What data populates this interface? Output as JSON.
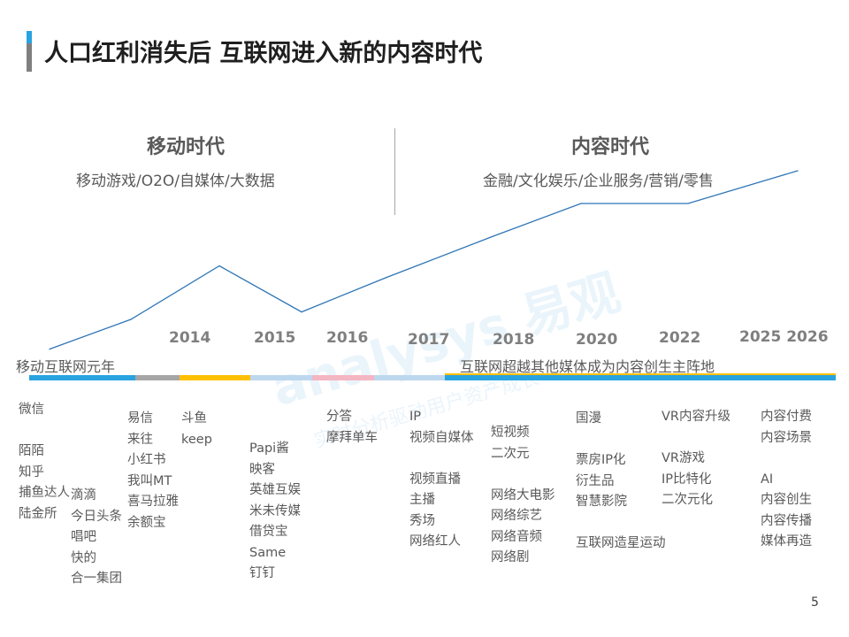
{
  "title": "人口红利消失后 互联网进入新的内容时代",
  "eras": [
    {
      "title": "移动时代",
      "subtitle": "移动游戏/O2O/自媒体/大数据"
    },
    {
      "title": "内容时代",
      "subtitle": "金融/文化娱乐/企业服务/营销/零售"
    }
  ],
  "milestones": [
    "移动互联网元年",
    "互联网超越其他媒体成为内容创生主阵地"
  ],
  "chart_data": {
    "type": "line",
    "title": "",
    "x": [
      "",
      "",
      "2014",
      "2015",
      "2016",
      "",
      "2018",
      "2020",
      "2022",
      "2025 2026"
    ],
    "values": [
      2,
      22,
      58,
      27,
      50,
      62,
      78,
      100,
      100,
      122
    ],
    "year_labels": [
      "2014",
      "2015",
      "2016",
      "2017",
      "2018",
      "2020",
      "2022",
      "2025 2026"
    ],
    "ylim": [
      0,
      130
    ],
    "grid": false,
    "legend": "none",
    "line_color": "#2e75b6"
  },
  "timeline_colors": {
    "blue": "#29a3e0",
    "gold": "#ffc000",
    "light": "#bdd7ee",
    "pink": "#f4b6c2",
    "gray": "#a6a6a6"
  },
  "columns": [
    [
      "微信",
      "",
      "陌陌",
      "知乎",
      "捕鱼达人",
      "陆金所"
    ],
    [
      "滴滴",
      "今日头条",
      "唱吧",
      "快的",
      "合一集团"
    ],
    [
      "易信",
      "来往",
      "小红书",
      "我叫MT",
      "喜马拉雅",
      "余额宝"
    ],
    [
      "斗鱼",
      "keep"
    ],
    [
      "Papi酱",
      "映客",
      "英雄互娱",
      "米未传媒",
      "借贷宝",
      "Same",
      "钉钉"
    ],
    [
      "分答",
      "摩拜单车"
    ],
    [
      "IP",
      "视频自媒体",
      "",
      "视频直播",
      "主播",
      "秀场",
      "网络红人"
    ],
    [
      "短视频",
      "二次元",
      "",
      "网络大电影",
      "网络综艺",
      "网络音频",
      "网络剧"
    ],
    [
      "国漫",
      "",
      "票房IP化",
      "衍生品",
      "智慧影院",
      "",
      "互联网造星运动"
    ],
    [
      "VR内容升级",
      "",
      "VR游戏",
      "IP比特化",
      "二次元化"
    ],
    [
      "内容付费",
      "内容场景",
      "",
      "AI",
      "内容创生",
      "内容传播",
      "媒体再造"
    ]
  ],
  "watermark": "analysys 易观",
  "watermark_sub": "实时分析驱动用户资产成长",
  "page_number": "5"
}
